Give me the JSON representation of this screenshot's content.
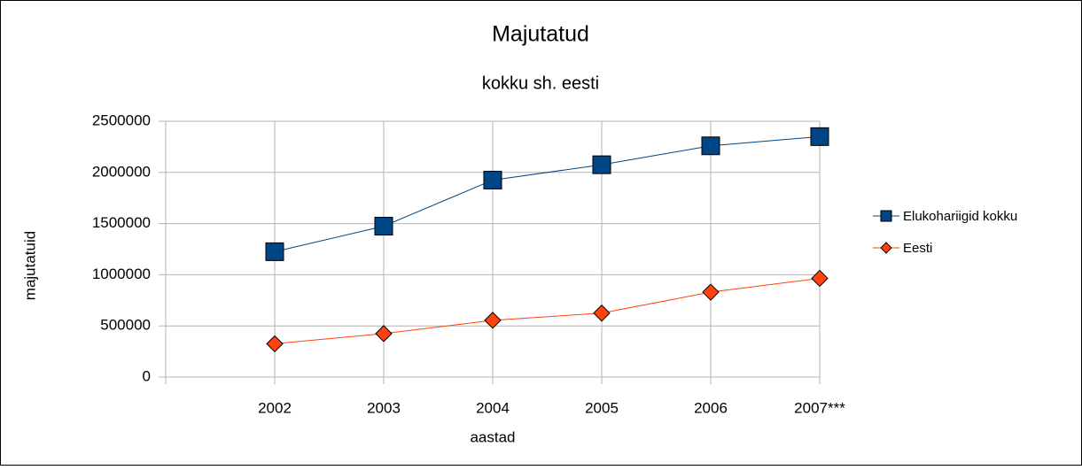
{
  "chart_data": {
    "type": "line",
    "title": "Majutatud",
    "subtitle": "kokku sh. eesti",
    "x_label": "aastad",
    "y_label": "majutatuid",
    "categories": [
      null,
      "2002",
      "2003",
      "2004",
      "2005",
      "2006",
      "2007***"
    ],
    "series": [
      {
        "name": "Elukohariigid kokku",
        "color": "#004586",
        "marker": "square",
        "values": [
          null,
          1225000,
          1475000,
          1925000,
          2075000,
          2260000,
          2350000
        ]
      },
      {
        "name": "Eesti",
        "color": "#ff420e",
        "marker": "diamond",
        "values": [
          null,
          325000,
          425000,
          555000,
          625000,
          830000,
          965000
        ]
      }
    ],
    "ylim": [
      0,
      2500000
    ],
    "yticks": [
      0,
      500000,
      1000000,
      1500000,
      2000000,
      2500000
    ],
    "grid": true,
    "legend": "right"
  }
}
